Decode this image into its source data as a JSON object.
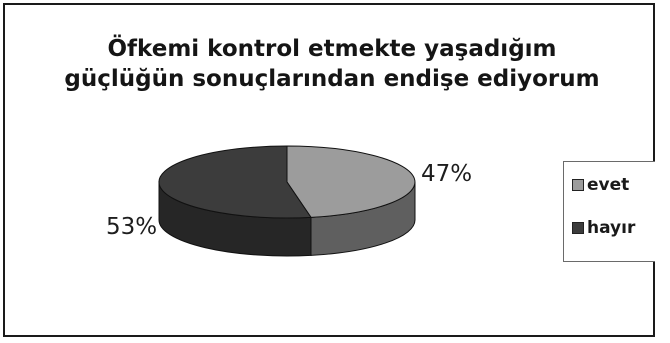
{
  "chart_data": {
    "type": "pie",
    "title_lines": [
      "Öfkemi kontrol etmekte yaşadığım",
      "güçlüğün sonuçlarından endişe ediyorum"
    ],
    "categories": [
      "evet",
      "hayır"
    ],
    "values": [
      47,
      53
    ],
    "labels": [
      "47%",
      "53%"
    ],
    "legend_position": "right",
    "colors": {
      "evet": "#9c9c9c",
      "evet_side": "#5f5f5f",
      "hayır": "#3c3c3c",
      "hayır_side": "#262626"
    }
  }
}
